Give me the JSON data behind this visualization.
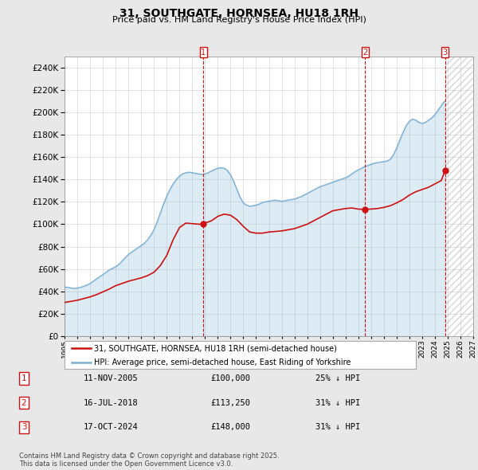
{
  "title": "31, SOUTHGATE, HORNSEA, HU18 1RH",
  "subtitle": "Price paid vs. HM Land Registry's House Price Index (HPI)",
  "legend_line1": "31, SOUTHGATE, HORNSEA, HU18 1RH (semi-detached house)",
  "legend_line2": "HPI: Average price, semi-detached house, East Riding of Yorkshire",
  "hpi_color": "#7ab0d4",
  "price_color": "#cc1111",
  "background_color": "#e8e8e8",
  "plot_bg_color": "#ffffff",
  "grid_color": "#cccccc",
  "ylim": [
    0,
    250000
  ],
  "yticks": [
    0,
    20000,
    40000,
    60000,
    80000,
    100000,
    120000,
    140000,
    160000,
    180000,
    200000,
    220000,
    240000
  ],
  "xmin": 1995,
  "xmax": 2027,
  "sale_markers": [
    {
      "num": 1,
      "date": "11-NOV-2005",
      "x": 2005.87,
      "price": 100000,
      "pct": "25% ↓ HPI"
    },
    {
      "num": 2,
      "date": "16-JUL-2018",
      "x": 2018.54,
      "price": 113250,
      "pct": "31% ↓ HPI"
    },
    {
      "num": 3,
      "date": "17-OCT-2024",
      "x": 2024.79,
      "price": 148000,
      "pct": "31% ↓ HPI"
    }
  ],
  "footer": "Contains HM Land Registry data © Crown copyright and database right 2025.\nThis data is licensed under the Open Government Licence v3.0.",
  "hpi_data": {
    "years": [
      1995.0,
      1995.25,
      1995.5,
      1995.75,
      1996.0,
      1996.25,
      1996.5,
      1996.75,
      1997.0,
      1997.25,
      1997.5,
      1997.75,
      1998.0,
      1998.25,
      1998.5,
      1998.75,
      1999.0,
      1999.25,
      1999.5,
      1999.75,
      2000.0,
      2000.25,
      2000.5,
      2000.75,
      2001.0,
      2001.25,
      2001.5,
      2001.75,
      2002.0,
      2002.25,
      2002.5,
      2002.75,
      2003.0,
      2003.25,
      2003.5,
      2003.75,
      2004.0,
      2004.25,
      2004.5,
      2004.75,
      2005.0,
      2005.25,
      2005.5,
      2005.75,
      2006.0,
      2006.25,
      2006.5,
      2006.75,
      2007.0,
      2007.25,
      2007.5,
      2007.75,
      2008.0,
      2008.25,
      2008.5,
      2008.75,
      2009.0,
      2009.25,
      2009.5,
      2009.75,
      2010.0,
      2010.25,
      2010.5,
      2010.75,
      2011.0,
      2011.25,
      2011.5,
      2011.75,
      2012.0,
      2012.25,
      2012.5,
      2012.75,
      2013.0,
      2013.25,
      2013.5,
      2013.75,
      2014.0,
      2014.25,
      2014.5,
      2014.75,
      2015.0,
      2015.25,
      2015.5,
      2015.75,
      2016.0,
      2016.25,
      2016.5,
      2016.75,
      2017.0,
      2017.25,
      2017.5,
      2017.75,
      2018.0,
      2018.25,
      2018.5,
      2018.75,
      2019.0,
      2019.25,
      2019.5,
      2019.75,
      2020.0,
      2020.25,
      2020.5,
      2020.75,
      2021.0,
      2021.25,
      2021.5,
      2021.75,
      2022.0,
      2022.25,
      2022.5,
      2022.75,
      2023.0,
      2023.25,
      2023.5,
      2023.75,
      2024.0,
      2024.25,
      2024.5,
      2024.75
    ],
    "values": [
      44000,
      43500,
      43000,
      42500,
      43000,
      43500,
      44500,
      45500,
      47000,
      49000,
      51000,
      53000,
      55000,
      57000,
      59000,
      60500,
      62000,
      64000,
      67000,
      70000,
      73000,
      75000,
      77000,
      79000,
      81000,
      83000,
      86000,
      90000,
      95000,
      102000,
      110000,
      118000,
      125000,
      131000,
      136000,
      140000,
      143000,
      145000,
      146000,
      146500,
      146000,
      145500,
      145000,
      144500,
      145000,
      146000,
      147500,
      149000,
      150000,
      150500,
      150000,
      148000,
      144000,
      138000,
      131000,
      124000,
      119000,
      117000,
      116000,
      116500,
      117000,
      118000,
      119500,
      120000,
      120500,
      121000,
      121500,
      121000,
      120500,
      121000,
      121500,
      122000,
      122500,
      123500,
      124500,
      126000,
      127500,
      129000,
      130500,
      132000,
      133500,
      134500,
      135500,
      136500,
      137500,
      138500,
      139500,
      140500,
      141500,
      143000,
      145000,
      147000,
      148500,
      150000,
      151500,
      152500,
      153500,
      154500,
      155000,
      155500,
      156000,
      156500,
      158000,
      162000,
      168000,
      175000,
      182000,
      188000,
      192000,
      194000,
      193000,
      191000,
      190000,
      191000,
      193000,
      195000,
      198000,
      202000,
      206000,
      210000
    ]
  },
  "price_data": {
    "years": [
      1995.0,
      1995.5,
      1996.0,
      1996.5,
      1997.0,
      1997.5,
      1998.0,
      1998.5,
      1999.0,
      1999.5,
      2000.0,
      2000.5,
      2001.0,
      2001.5,
      2002.0,
      2002.5,
      2003.0,
      2003.5,
      2004.0,
      2004.5,
      2005.0,
      2005.5,
      2005.87,
      2006.0,
      2006.5,
      2007.0,
      2007.5,
      2008.0,
      2008.5,
      2009.0,
      2009.5,
      2010.0,
      2010.5,
      2011.0,
      2011.5,
      2012.0,
      2012.5,
      2013.0,
      2013.5,
      2014.0,
      2014.5,
      2015.0,
      2015.5,
      2016.0,
      2016.5,
      2017.0,
      2017.5,
      2018.0,
      2018.54,
      2019.0,
      2019.5,
      2020.0,
      2020.5,
      2021.0,
      2021.5,
      2022.0,
      2022.5,
      2023.0,
      2023.5,
      2024.0,
      2024.5,
      2024.79
    ],
    "values": [
      30000,
      31000,
      32000,
      33500,
      35000,
      37000,
      39500,
      42000,
      45000,
      47000,
      49000,
      50500,
      52000,
      54000,
      57000,
      63000,
      72000,
      86000,
      97000,
      101000,
      100500,
      100000,
      100000,
      101000,
      103000,
      107000,
      109000,
      108000,
      104000,
      98000,
      93000,
      92000,
      92000,
      93000,
      93500,
      94000,
      95000,
      96000,
      98000,
      100000,
      103000,
      106000,
      109000,
      112000,
      113000,
      114000,
      114500,
      113500,
      113250,
      113500,
      114000,
      115000,
      116500,
      119000,
      122000,
      126000,
      129000,
      131000,
      133000,
      136000,
      139000,
      148000
    ]
  }
}
